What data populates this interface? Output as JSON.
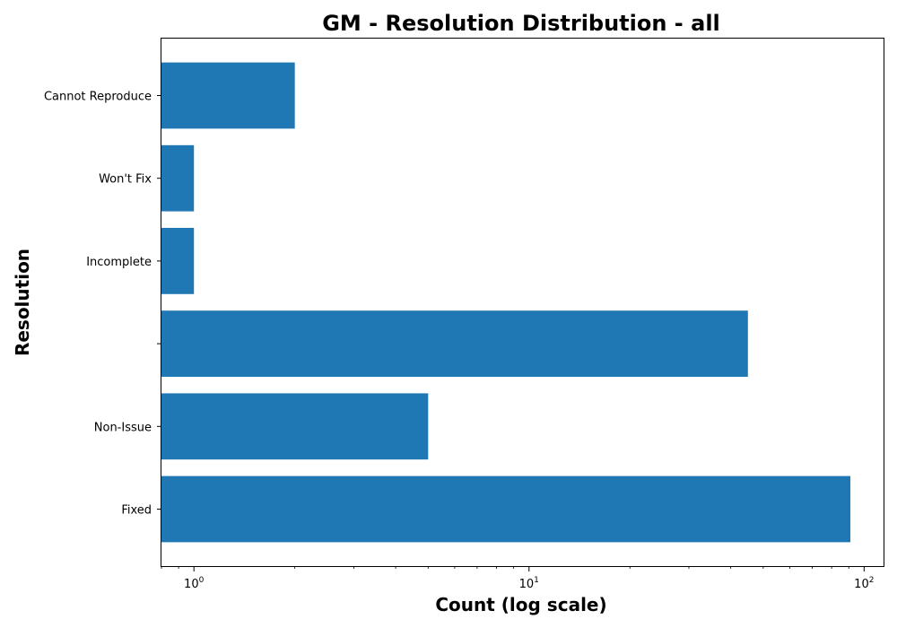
{
  "chart_data": {
    "type": "bar",
    "orientation": "horizontal",
    "title": "GM - Resolution Distribution - all",
    "xlabel": "Count (log scale)",
    "ylabel": "Resolution",
    "x_scale": "log",
    "xlim": [
      0.8,
      115
    ],
    "x_ticks": [
      {
        "value": 1,
        "base": "10",
        "exponent": "0"
      },
      {
        "value": 10,
        "base": "10",
        "exponent": "1"
      },
      {
        "value": 100,
        "base": "10",
        "exponent": "2"
      }
    ],
    "categories": [
      "Fixed",
      "Non-Issue",
      "",
      "Incomplete",
      "Won't Fix",
      "Cannot Reproduce"
    ],
    "values": [
      91,
      5,
      45,
      1,
      1,
      2
    ],
    "bar_color": "#1f77b4",
    "grid": false,
    "legend": "none"
  }
}
